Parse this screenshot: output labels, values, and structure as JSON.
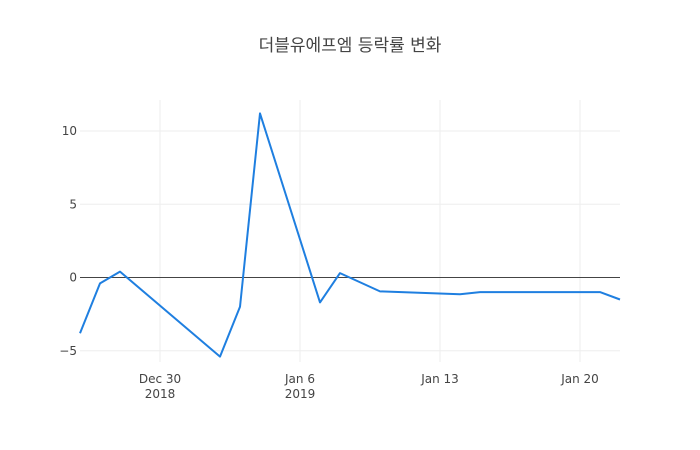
{
  "chart_data": {
    "type": "line",
    "title": "더블유에프엠 등락률 변화",
    "xlabel": "",
    "ylabel": "",
    "x": [
      "2018-12-26",
      "2018-12-27",
      "2018-12-28",
      "2019-01-02",
      "2019-01-03",
      "2019-01-04",
      "2019-01-07",
      "2019-01-08",
      "2019-01-10",
      "2019-01-14",
      "2019-01-15",
      "2019-01-21",
      "2019-01-22"
    ],
    "series": [
      {
        "name": "등락률",
        "color": "#1f7fe0",
        "values": [
          -3.8,
          -0.4,
          0.4,
          -5.4,
          -2.0,
          11.2,
          -1.7,
          0.3,
          -0.95,
          -1.15,
          -1.0,
          -1.0,
          -1.5
        ]
      }
    ],
    "ylim": [
      -6,
      12
    ],
    "yticks": [
      10,
      5,
      0,
      -5
    ],
    "ytick_labels": [
      "10",
      "5",
      "0",
      "−5"
    ],
    "xticks": [
      {
        "date": "2018-12-30",
        "label": "Dec 30",
        "sublabel": "2018"
      },
      {
        "date": "2019-01-06",
        "label": "Jan 6",
        "sublabel": "2019"
      },
      {
        "date": "2019-01-13",
        "label": "Jan 13",
        "sublabel": ""
      },
      {
        "date": "2019-01-20",
        "label": "Jan 20",
        "sublabel": ""
      }
    ],
    "grid": true,
    "zeroline": true,
    "legend": false
  }
}
